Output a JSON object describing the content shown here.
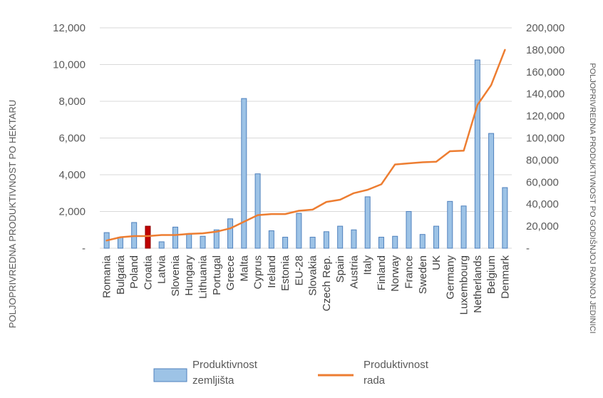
{
  "chart_data": {
    "type": "bar",
    "categories": [
      "Romania",
      "Bulgaria",
      "Poland",
      "Croatia",
      "Latvia",
      "Slovenia",
      "Hungary",
      "Lithuania",
      "Portugal",
      "Greece",
      "Malta",
      "Cyprus",
      "Ireland",
      "Estonia",
      "EU-28",
      "Slovakia",
      "Czech Rep.",
      "Spain",
      "Austria",
      "Italy",
      "Finland",
      "Norway",
      "France",
      "Sweden",
      "UK",
      "Germany",
      "Luxembourg",
      "Netherlands",
      "Belgium",
      "Denmark"
    ],
    "highlight_category": "Croatia",
    "ylabel": "POLJOPRIVREDNA PRODUKTIVNOST PO HEKTARU",
    "y2label": "POLJOPRIVREDNA PRODUKTIVNOST PO GODIŠNJOJ RADNOJ JEDINICI",
    "ylim": [
      0,
      12000
    ],
    "y2lim": [
      0,
      200000
    ],
    "y_ticks": [
      "-",
      "2,000",
      "4,000",
      "6,000",
      "8,000",
      "10,000",
      "12,000"
    ],
    "y2_ticks": [
      "-",
      "20,000",
      "40,000",
      "60,000",
      "80,000",
      "100,000",
      "120,000",
      "140,000",
      "160,000",
      "180,000",
      "200,000"
    ],
    "grid": true,
    "legend_position": "bottom",
    "colors": {
      "bar": "#9dc3e6",
      "bar_stroke": "#4f81bd",
      "bar_highlight": "#c00000",
      "line": "#ed7d31",
      "grid": "#d9d9d9"
    },
    "series": [
      {
        "name": "Produktivnost zemljišta",
        "type": "bar",
        "axis": "left",
        "values": [
          850,
          600,
          1400,
          1200,
          350,
          1150,
          800,
          650,
          1000,
          1600,
          8150,
          4050,
          950,
          600,
          1900,
          600,
          900,
          1200,
          1000,
          2800,
          600,
          650,
          2000,
          750,
          1200,
          2550,
          2300,
          10250,
          6250,
          3300
        ]
      },
      {
        "name": "Produktivnost rada",
        "type": "line",
        "axis": "right",
        "values": [
          7000,
          10000,
          11000,
          11000,
          12000,
          12000,
          13000,
          13500,
          15000,
          18000,
          24000,
          30000,
          31000,
          31000,
          34000,
          35000,
          42000,
          44000,
          50000,
          53000,
          58000,
          76000,
          77000,
          78000,
          78500,
          88000,
          88500,
          130000,
          148000,
          180000
        ]
      }
    ]
  },
  "legend": {
    "bar_label_line1": "Produktivnost",
    "bar_label_line2": "zemljišta",
    "line_label_line1": "Produktivnost",
    "line_label_line2": "rada"
  }
}
